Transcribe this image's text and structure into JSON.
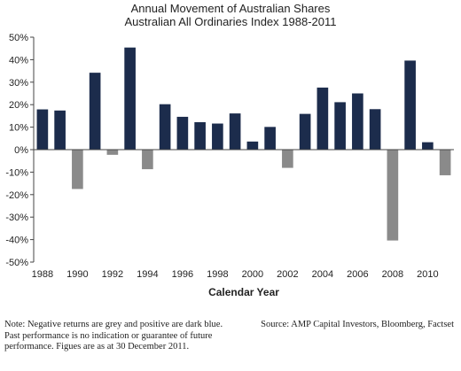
{
  "chart_data": {
    "type": "bar",
    "title": "Annual Movement of Australian Shares",
    "subtitle": "Australian All Ordinaries Index 1988-2011",
    "xlabel": "Calendar Year",
    "ylabel": "",
    "ylim": [
      -50,
      50
    ],
    "yticks": [
      50,
      40,
      30,
      20,
      10,
      0,
      -10,
      -20,
      -30,
      -40,
      -50
    ],
    "ytick_labels": [
      "50%",
      "40%",
      "30%",
      "20%",
      "10%",
      "0%",
      "-10%",
      "-20%",
      "-30%",
      "-40%",
      "-50%"
    ],
    "xtick_labels": [
      "1988",
      "1990",
      "1992",
      "1994",
      "1996",
      "1998",
      "2000",
      "2002",
      "2004",
      "2006",
      "2008",
      "2010"
    ],
    "categories": [
      "1988",
      "1989",
      "1990",
      "1991",
      "1992",
      "1993",
      "1994",
      "1995",
      "1996",
      "1997",
      "1998",
      "1999",
      "2000",
      "2001",
      "2002",
      "2003",
      "2004",
      "2005",
      "2006",
      "2007",
      "2008",
      "2009",
      "2010",
      "2011"
    ],
    "values": [
      17.9,
      17.4,
      -17.5,
      34.2,
      -2.3,
      45.4,
      -8.7,
      20.2,
      14.6,
      12.2,
      11.6,
      16.1,
      3.6,
      10.1,
      -8.1,
      15.9,
      27.6,
      21.1,
      25.0,
      18.0,
      -40.4,
      39.6,
      3.3,
      -11.4
    ],
    "grid": false,
    "legend": "none",
    "colors": {
      "positive": "#1c2c4c",
      "negative": "#8a8a8a"
    }
  },
  "footer": {
    "note": "Note: Negative returns are grey and positive are dark blue. Past performance is no indication or guarantee of future performance. Figues are as at 30 December 2011.",
    "source": "Source: AMP Capital Investors, Bloomberg, Factset"
  }
}
